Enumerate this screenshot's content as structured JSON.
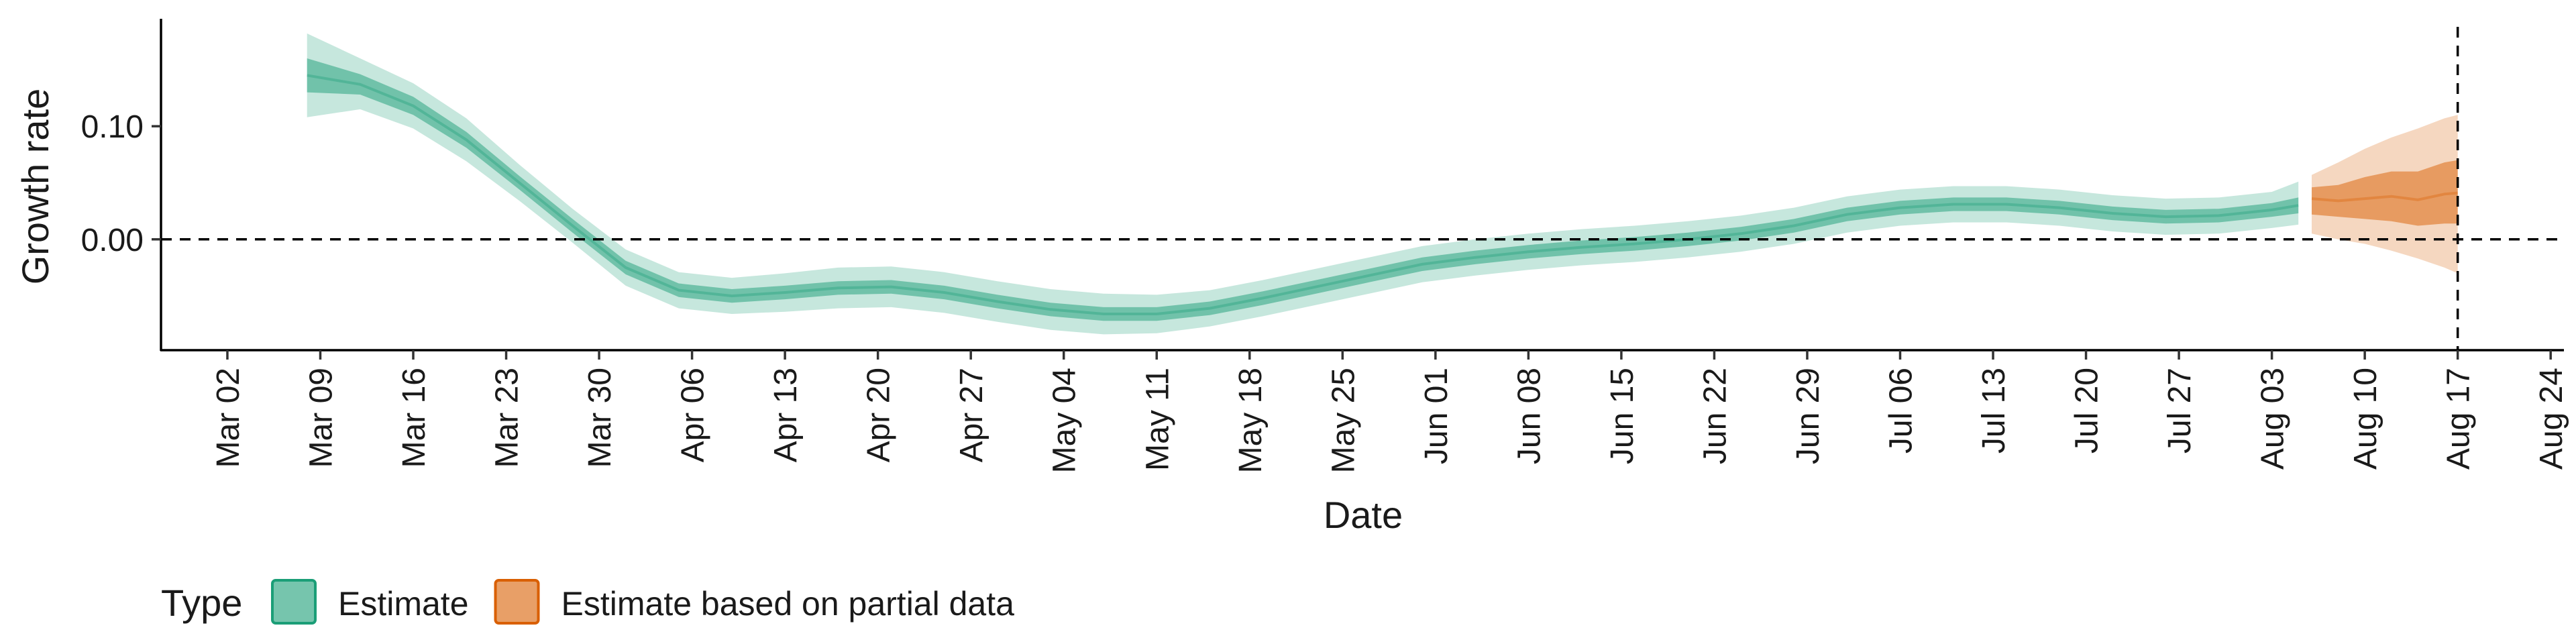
{
  "chart_data": {
    "type": "area",
    "title": "",
    "xlabel": "Date",
    "ylabel": "Growth rate",
    "xlim": [
      "2020-02-26",
      "2020-08-25"
    ],
    "ylim": [
      -0.098,
      0.195
    ],
    "x_ticks": [
      "2020-03-02",
      "2020-03-09",
      "2020-03-16",
      "2020-03-23",
      "2020-03-30",
      "2020-04-06",
      "2020-04-13",
      "2020-04-20",
      "2020-04-27",
      "2020-05-04",
      "2020-05-11",
      "2020-05-18",
      "2020-05-25",
      "2020-06-01",
      "2020-06-08",
      "2020-06-15",
      "2020-06-22",
      "2020-06-29",
      "2020-07-06",
      "2020-07-13",
      "2020-07-20",
      "2020-07-27",
      "2020-08-03",
      "2020-08-10",
      "2020-08-17",
      "2020-08-24"
    ],
    "x_tick_labels": [
      "Mar 02",
      "Mar 09",
      "Mar 16",
      "Mar 23",
      "Mar 30",
      "Apr 06",
      "Apr 13",
      "Apr 20",
      "Apr 27",
      "May 04",
      "May 11",
      "May 18",
      "May 25",
      "Jun 01",
      "Jun 08",
      "Jun 15",
      "Jun 22",
      "Jun 29",
      "Jul 06",
      "Jul 13",
      "Jul 20",
      "Jul 27",
      "Aug 03",
      "Aug 10",
      "Aug 17",
      "Aug 24"
    ],
    "y_ticks": [
      0.0,
      0.1
    ],
    "y_tick_labels": [
      "0.00",
      "0.10"
    ],
    "reference_lines": [
      {
        "axis": "y",
        "value": 0,
        "style": "dashed"
      },
      {
        "axis": "x",
        "value": "2020-08-17",
        "style": "dashed"
      }
    ],
    "grid": false,
    "legend": {
      "title": "Type",
      "position": "bottom-left",
      "entries": [
        {
          "label": "Estimate",
          "color": "#1b9e77"
        },
        {
          "label": "Estimate based on partial data",
          "color": "#d95f02"
        }
      ]
    },
    "series": [
      {
        "name": "Estimate",
        "color": "#1b9e77",
        "x": [
          "2020-03-08",
          "2020-03-12",
          "2020-03-16",
          "2020-03-20",
          "2020-03-24",
          "2020-03-28",
          "2020-04-01",
          "2020-04-05",
          "2020-04-09",
          "2020-04-13",
          "2020-04-17",
          "2020-04-21",
          "2020-04-25",
          "2020-04-29",
          "2020-05-03",
          "2020-05-07",
          "2020-05-11",
          "2020-05-15",
          "2020-05-19",
          "2020-05-23",
          "2020-05-27",
          "2020-05-31",
          "2020-06-04",
          "2020-06-08",
          "2020-06-12",
          "2020-06-16",
          "2020-06-20",
          "2020-06-24",
          "2020-06-28",
          "2020-07-02",
          "2020-07-06",
          "2020-07-10",
          "2020-07-14",
          "2020-07-18",
          "2020-07-22",
          "2020-07-26",
          "2020-07-30",
          "2020-08-03",
          "2020-08-05"
        ],
        "median": [
          0.145,
          0.137,
          0.118,
          0.088,
          0.05,
          0.012,
          -0.025,
          -0.045,
          -0.05,
          -0.047,
          -0.043,
          -0.042,
          -0.047,
          -0.055,
          -0.062,
          -0.066,
          -0.066,
          -0.061,
          -0.052,
          -0.042,
          -0.032,
          -0.022,
          -0.016,
          -0.011,
          -0.007,
          -0.004,
          0.0,
          0.005,
          0.012,
          0.022,
          0.028,
          0.031,
          0.031,
          0.028,
          0.023,
          0.02,
          0.021,
          0.026,
          0.03
        ],
        "inner_lower": [
          0.13,
          0.128,
          0.11,
          0.081,
          0.044,
          0.006,
          -0.031,
          -0.051,
          -0.056,
          -0.053,
          -0.049,
          -0.048,
          -0.053,
          -0.061,
          -0.068,
          -0.072,
          -0.072,
          -0.067,
          -0.058,
          -0.048,
          -0.038,
          -0.028,
          -0.022,
          -0.017,
          -0.013,
          -0.01,
          -0.006,
          -0.001,
          0.006,
          0.016,
          0.022,
          0.025,
          0.025,
          0.022,
          0.017,
          0.014,
          0.015,
          0.02,
          0.023
        ],
        "inner_upper": [
          0.16,
          0.146,
          0.126,
          0.095,
          0.056,
          0.018,
          -0.019,
          -0.039,
          -0.044,
          -0.041,
          -0.037,
          -0.036,
          -0.041,
          -0.049,
          -0.056,
          -0.06,
          -0.06,
          -0.055,
          -0.046,
          -0.036,
          -0.026,
          -0.016,
          -0.01,
          -0.005,
          -0.001,
          0.002,
          0.006,
          0.011,
          0.018,
          0.028,
          0.034,
          0.037,
          0.037,
          0.034,
          0.029,
          0.026,
          0.027,
          0.032,
          0.037
        ],
        "outer_lower": [
          0.108,
          0.115,
          0.098,
          0.069,
          0.034,
          -0.003,
          -0.041,
          -0.061,
          -0.066,
          -0.064,
          -0.061,
          -0.06,
          -0.065,
          -0.073,
          -0.08,
          -0.084,
          -0.083,
          -0.077,
          -0.068,
          -0.058,
          -0.048,
          -0.038,
          -0.032,
          -0.027,
          -0.023,
          -0.02,
          -0.016,
          -0.011,
          -0.004,
          0.006,
          0.012,
          0.015,
          0.015,
          0.012,
          0.007,
          0.004,
          0.005,
          0.01,
          0.013
        ],
        "outer_upper": [
          0.182,
          0.16,
          0.138,
          0.107,
          0.066,
          0.027,
          -0.009,
          -0.029,
          -0.034,
          -0.03,
          -0.025,
          -0.024,
          -0.029,
          -0.037,
          -0.044,
          -0.048,
          -0.049,
          -0.045,
          -0.036,
          -0.026,
          -0.016,
          -0.006,
          0.0,
          0.005,
          0.009,
          0.012,
          0.016,
          0.021,
          0.028,
          0.038,
          0.044,
          0.047,
          0.047,
          0.044,
          0.039,
          0.036,
          0.037,
          0.042,
          0.051
        ]
      },
      {
        "name": "Estimate based on partial data",
        "color": "#d95f02",
        "x": [
          "2020-08-06",
          "2020-08-08",
          "2020-08-10",
          "2020-08-12",
          "2020-08-14",
          "2020-08-16",
          "2020-08-17"
        ],
        "median": [
          0.036,
          0.034,
          0.036,
          0.038,
          0.035,
          0.04,
          0.041
        ],
        "inner_lower": [
          0.022,
          0.02,
          0.018,
          0.016,
          0.012,
          0.014,
          0.014
        ],
        "inner_upper": [
          0.046,
          0.048,
          0.055,
          0.06,
          0.06,
          0.068,
          0.07
        ],
        "outer_lower": [
          0.005,
          0.0,
          -0.004,
          -0.01,
          -0.017,
          -0.025,
          -0.03
        ],
        "outer_upper": [
          0.057,
          0.068,
          0.08,
          0.09,
          0.098,
          0.107,
          0.11
        ]
      }
    ]
  }
}
